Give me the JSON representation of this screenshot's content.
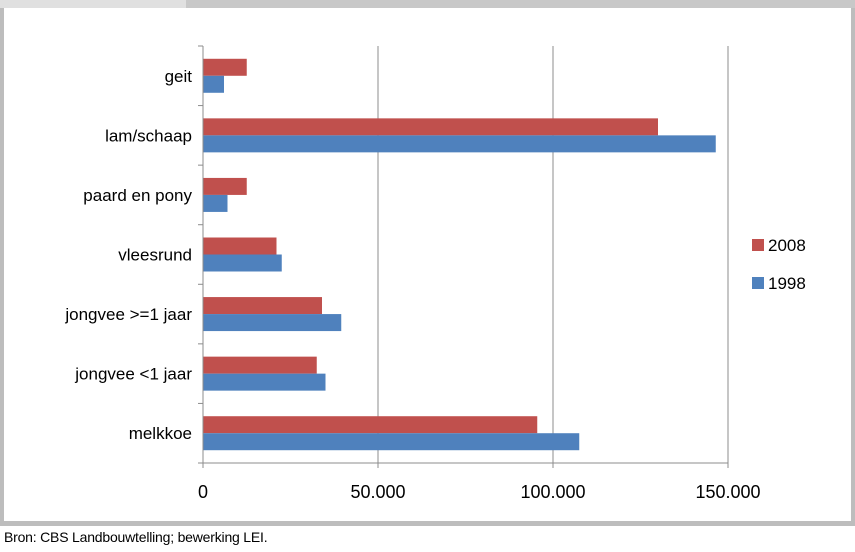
{
  "chart_data": {
    "type": "bar",
    "orientation": "horizontal",
    "categories": [
      "geit",
      "lam/schaap",
      "paard en pony",
      "vleesrund",
      "jongvee >=1 jaar",
      "jongvee <1 jaar",
      "melkkoe"
    ],
    "series": [
      {
        "name": "2008",
        "color": "#c0504d",
        "values": [
          12500,
          130000,
          12500,
          21000,
          34000,
          32500,
          95500
        ]
      },
      {
        "name": "1998",
        "color": "#4f81bd",
        "values": [
          6000,
          146500,
          7000,
          22500,
          39500,
          35000,
          107500
        ]
      }
    ],
    "xlim": [
      0,
      150000
    ],
    "x_ticks": [
      0,
      50000,
      100000,
      150000
    ],
    "x_tick_labels": [
      "0",
      "50.000",
      "100.000",
      "150.000"
    ],
    "grid": "vertical",
    "legend": "right"
  },
  "caption": "Bron: CBS Landbouwtelling; bewerking LEI."
}
